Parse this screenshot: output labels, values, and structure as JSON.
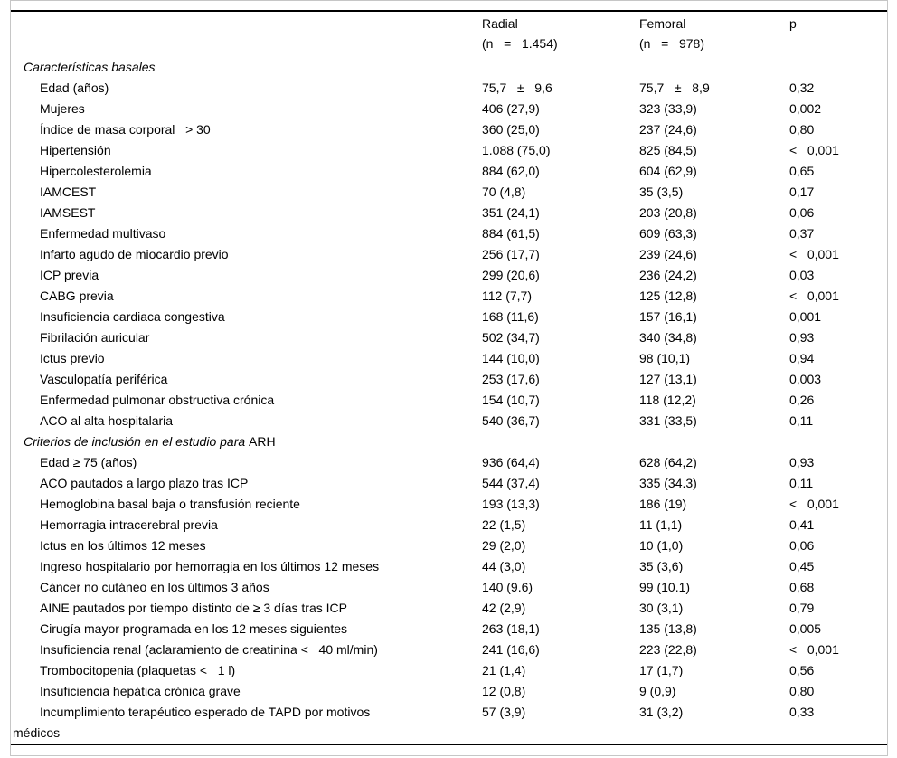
{
  "table": {
    "header": {
      "radial": "Radial\n(n   =   1.454)",
      "femoral": "Femoral\n(n   =   978)",
      "p": "p"
    },
    "sections": [
      {
        "title_italic": "Características basales",
        "title_plain": "",
        "rows": [
          {
            "label": "Edad (años)",
            "radial": "75,7   ±   9,6",
            "femoral": "75,7   ±   8,9",
            "p": "0,32"
          },
          {
            "label": "Mujeres",
            "radial": "406 (27,9)",
            "femoral": "323 (33,9)",
            "p": "0,002"
          },
          {
            "label": "Índice de masa corporal   > 30",
            "radial": "360 (25,0)",
            "femoral": "237 (24,6)",
            "p": "0,80"
          },
          {
            "label": "Hipertensión",
            "radial": "1.088 (75,0)",
            "femoral": "825 (84,5)",
            "p": "<   0,001"
          },
          {
            "label": "Hipercolesterolemia",
            "radial": "884 (62,0)",
            "femoral": "604 (62,9)",
            "p": "0,65"
          },
          {
            "label": "IAMCEST",
            "radial": "70 (4,8)",
            "femoral": "35 (3,5)",
            "p": "0,17"
          },
          {
            "label": "IAMSEST",
            "radial": "351 (24,1)",
            "femoral": "203 (20,8)",
            "p": "0,06"
          },
          {
            "label": "Enfermedad multivaso",
            "radial": "884 (61,5)",
            "femoral": "609 (63,3)",
            "p": "0,37"
          },
          {
            "label": "Infarto agudo de miocardio previo",
            "radial": "256 (17,7)",
            "femoral": "239 (24,6)",
            "p": "<   0,001"
          },
          {
            "label": "ICP previa",
            "radial": "299 (20,6)",
            "femoral": "236 (24,2)",
            "p": "0,03"
          },
          {
            "label": "CABG previa",
            "radial": "112 (7,7)",
            "femoral": "125 (12,8)",
            "p": "<   0,001"
          },
          {
            "label": "Insuficiencia cardiaca congestiva",
            "radial": "168 (11,6)",
            "femoral": "157 (16,1)",
            "p": "0,001"
          },
          {
            "label": "Fibrilación auricular",
            "radial": "502 (34,7)",
            "femoral": "340 (34,8)",
            "p": "0,93"
          },
          {
            "label": "Ictus previo",
            "radial": "144 (10,0)",
            "femoral": "98 (10,1)",
            "p": "0,94"
          },
          {
            "label": "Vasculopatía periférica",
            "radial": "253 (17,6)",
            "femoral": "127 (13,1)",
            "p": "0,003"
          },
          {
            "label": "Enfermedad pulmonar obstructiva crónica",
            "radial": "154 (10,7)",
            "femoral": "118 (12,2)",
            "p": "0,26"
          },
          {
            "label": "ACO al alta hospitalaria",
            "radial": "540 (36,7)",
            "femoral": "331 (33,5)",
            "p": "0,11"
          }
        ]
      },
      {
        "title_italic": "Criterios de inclusión en el estudio para ",
        "title_plain": "ARH",
        "rows": [
          {
            "label": "Edad ≥ 75 (años)",
            "radial": "936 (64,4)",
            "femoral": "628 (64,2)",
            "p": "0,93"
          },
          {
            "label": "ACO pautados a largo plazo tras ICP",
            "radial": "544 (37,4)",
            "femoral": "335 (34.3)",
            "p": "0,11"
          },
          {
            "label": "Hemoglobina basal baja o transfusión reciente",
            "radial": "193 (13,3)",
            "femoral": "186 (19)",
            "p": "<   0,001"
          },
          {
            "label": "Hemorragia intracerebral previa",
            "radial": "22 (1,5)",
            "femoral": "11 (1,1)",
            "p": "0,41"
          },
          {
            "label": "Ictus en los últimos 12 meses",
            "radial": "29 (2,0)",
            "femoral": "10 (1,0)",
            "p": "0,06"
          },
          {
            "label": "Ingreso hospitalario por hemorragia en los últimos 12 meses",
            "radial": "44 (3,0)",
            "femoral": "35 (3,6)",
            "p": "0,45"
          },
          {
            "label": "Cáncer no cutáneo en los últimos 3 años",
            "radial": "140 (9.6)",
            "femoral": "99 (10.1)",
            "p": "0,68"
          },
          {
            "label": "AINE pautados por tiempo distinto de ≥ 3 días tras ICP",
            "radial": "42 (2,9)",
            "femoral": "30 (3,1)",
            "p": "0,79"
          },
          {
            "label": "Cirugía mayor programada en los 12 meses siguientes",
            "radial": "263 (18,1)",
            "femoral": "135 (13,8)",
            "p": "0,005"
          },
          {
            "label": "Insuficiencia renal (aclaramiento de creatinina <   40 ml/min)",
            "radial": "241 (16,6)",
            "femoral": "223 (22,8)",
            "p": "<   0,001"
          },
          {
            "label": "Trombocitopenia (plaquetas <   1 l)",
            "radial": "21 (1,4)",
            "femoral": "17 (1,7)",
            "p": "0,56"
          },
          {
            "label": "Insuficiencia hepática crónica grave",
            "radial": "12 (0,8)",
            "femoral": "9 (0,9)",
            "p": "0,80"
          },
          {
            "label": "Incumplimiento terapéutico esperado de TAPD por motivos\nmédicos",
            "radial": "57 (3,9)",
            "femoral": "31 (3,2)",
            "p": "0,33",
            "wrap": true
          }
        ]
      }
    ]
  }
}
